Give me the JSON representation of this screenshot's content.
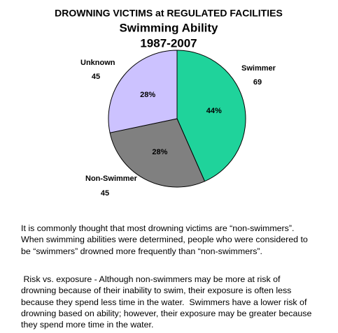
{
  "chart_data": {
    "type": "pie",
    "title": "DROWNING VICTIMS at REGULATED FACILITIES",
    "subtitle": "Swimming Ability",
    "period": "1987-2007",
    "categories": [
      "Swimmer",
      "Non-Swimmer",
      "Unknown"
    ],
    "values": [
      69,
      45,
      45
    ],
    "percent_labels": [
      "44%",
      "28%",
      "28%"
    ],
    "colors": [
      "#1fd39b",
      "#808080",
      "#ccc2ff"
    ]
  },
  "paragraphs": [
    [
      "It is commonly thought that most drowning victims are “non-swimmers”.",
      "When swimming abilities were determined, people who were considered to",
      "be “swimmers” drowned more frequently than “non-swimmers”."
    ],
    [
      " Risk vs. exposure - Although non-swimmers may be more at risk of",
      "drowning because of their inability to swim, their exposure is often less",
      "because they spend less time in the water.  Swimmers have a lower risk of",
      "drowning based on ability; however, their exposure may be greater because",
      "they spend more time in the water."
    ]
  ]
}
